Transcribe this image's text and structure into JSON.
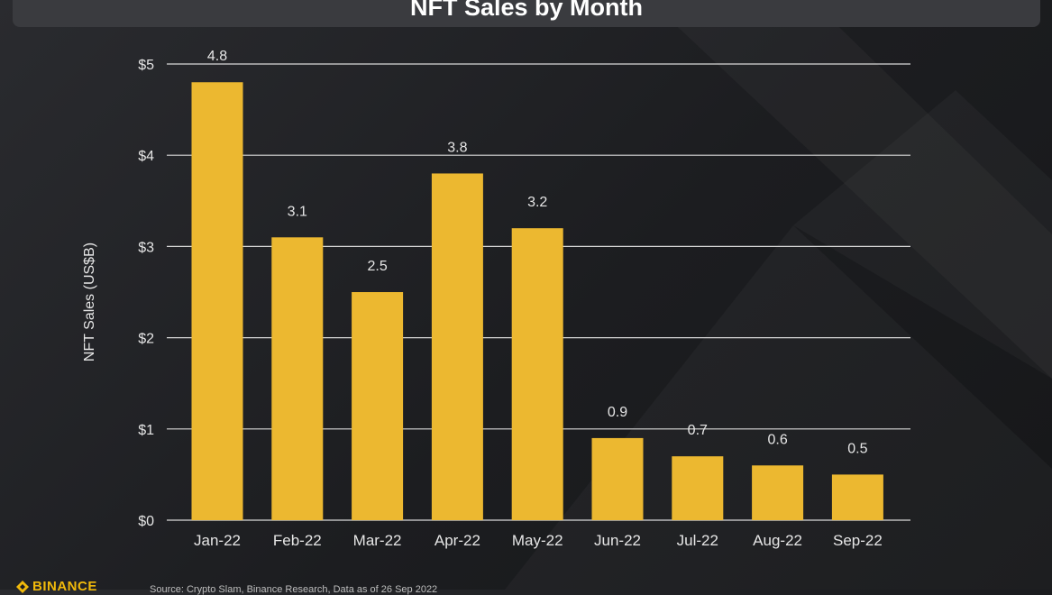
{
  "title": "NFT Sales by Month",
  "colors": {
    "bar": "#ecb830",
    "grid": "#d9d9d9",
    "text": "#e6e6e6",
    "background": "#1f2023",
    "title_bar": "#3a3b3f",
    "brand": "#f0b90b"
  },
  "footer": {
    "brand": "BINANCE",
    "source": "Source: Crypto Slam, Binance Research, Data as of 26 Sep 2022"
  },
  "chart_data": {
    "type": "bar",
    "title": "NFT Sales by Month",
    "categories": [
      "Jan-22",
      "Feb-22",
      "Mar-22",
      "Apr-22",
      "May-22",
      "Jun-22",
      "Jul-22",
      "Aug-22",
      "Sep-22"
    ],
    "values": [
      4.8,
      3.1,
      2.5,
      3.8,
      3.2,
      0.9,
      0.7,
      0.6,
      0.5
    ],
    "data_labels": [
      "4.8",
      "3.1",
      "2.5",
      "3.8",
      "3.2",
      "0.9",
      "0.7",
      "0.6",
      "0.5"
    ],
    "xlabel": "",
    "ylabel": "NFT Sales (US$B)",
    "ylim": [
      0,
      5
    ],
    "yticks": [
      0,
      1,
      2,
      3,
      4,
      5
    ],
    "ytick_labels": [
      "$0",
      "$1",
      "$2",
      "$3",
      "$4",
      "$5"
    ],
    "grid": true,
    "legend": "none"
  }
}
